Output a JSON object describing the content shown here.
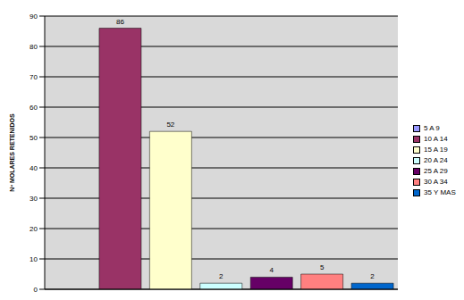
{
  "chart_data": {
    "type": "bar",
    "y_label": "Nº MOLARES RETENIDOS",
    "categories": [
      "5 A 9",
      "10 A 14",
      "15 A 19",
      "20 A 24",
      "25 A 29",
      "30 A 34",
      "35 Y MAS"
    ],
    "values": [
      0,
      86,
      52,
      2,
      4,
      5,
      2
    ],
    "colors": [
      "#9999ff",
      "#993366",
      "#ffffcc",
      "#ccffff",
      "#660066",
      "#ff8080",
      "#0066cc"
    ],
    "ylim": [
      0,
      90
    ],
    "yticks": [
      0,
      10,
      20,
      30,
      40,
      50,
      60,
      70,
      80,
      90
    ],
    "grid": true,
    "data_labels": true,
    "tick_labels": "y",
    "legend": "right"
  }
}
